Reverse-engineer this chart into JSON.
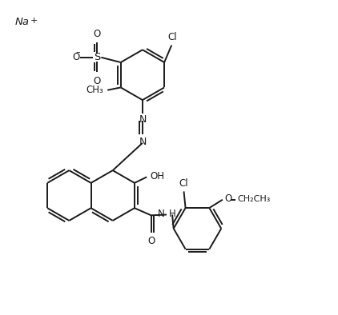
{
  "bg_color": "#ffffff",
  "line_color": "#1a1a1a",
  "bond_width": 1.4,
  "figsize": [
    4.22,
    3.94
  ],
  "dpi": 100,
  "xlim": [
    0,
    10
  ],
  "ylim": [
    0,
    9.4
  ]
}
